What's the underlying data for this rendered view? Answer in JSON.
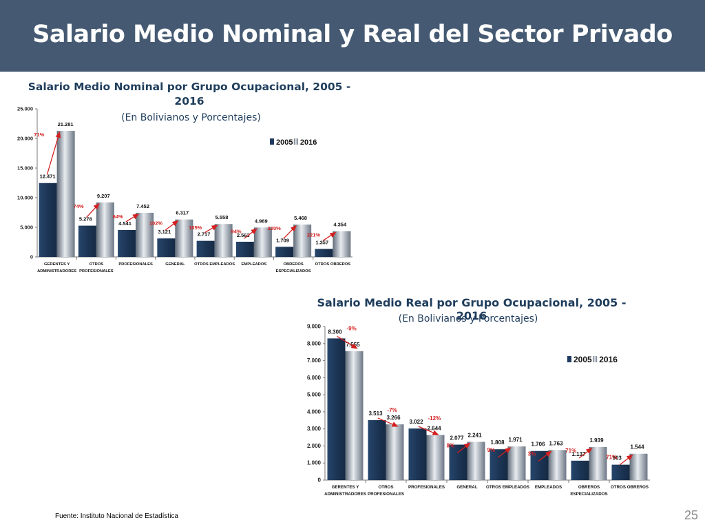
{
  "header": {
    "title": "Salario Medio Nominal y Real del Sector Privado"
  },
  "colors": {
    "series_2005": "#1f3a5f",
    "series_2016": "#8a9199",
    "arrow": "#d42020",
    "header_bg": "#455a72"
  },
  "footer": {
    "source": "Fuente: Instituto Nacional de Estadística",
    "page_number": "25"
  },
  "chart_data": [
    {
      "type": "bar",
      "title": "Salario Medio Nominal por Grupo Ocupacional, 2005 - 2016",
      "subtitle": "(En Bolivianos y Porcentajes)",
      "categories": [
        [
          "GERENTES Y",
          "ADMINISTRADORES"
        ],
        [
          "OTROS",
          "PROFESIONALES"
        ],
        [
          "PROFESIONALES"
        ],
        [
          "GENERAL"
        ],
        [
          "OTROS EMPLEADOS"
        ],
        [
          "EMPLEADOS"
        ],
        [
          "OBREROS",
          "ESPECIALIZADOS"
        ],
        [
          "OTROS OBREROS"
        ]
      ],
      "series": [
        {
          "name": "2005",
          "values": [
            12471,
            5278,
            4541,
            3121,
            2717,
            2563,
            1709,
            1357
          ],
          "labels": [
            "12.471",
            "5.278",
            "4.541",
            "3.121",
            "2.717",
            "2.563",
            "1.709",
            "1.357"
          ]
        },
        {
          "name": "2016",
          "values": [
            21281,
            9207,
            7452,
            6317,
            5558,
            4969,
            5468,
            4354
          ],
          "labels": [
            "21.281",
            "9.207",
            "7.452",
            "6.317",
            "5.558",
            "4.969",
            "5.468",
            "4.354"
          ]
        }
      ],
      "changes": [
        "71%",
        "74%",
        "64%",
        "102%",
        "105%",
        "94%",
        "220%",
        "221%"
      ],
      "ylim": [
        0,
        25000
      ],
      "ytick_values": [
        0,
        5000,
        10000,
        15000,
        20000,
        25000
      ],
      "yticks": [
        "0",
        "5.000",
        "10.000",
        "15.000",
        "20.000",
        "25.000"
      ],
      "legend": [
        "2005",
        "2016"
      ],
      "legend_position": "top-right",
      "grid": false
    },
    {
      "type": "bar",
      "title": "Salario Medio Real por Grupo Ocupacional, 2005 - 2016",
      "subtitle": "(En Bolivianos y Porcentajes)",
      "categories": [
        [
          "GERENTES Y",
          "ADMINISTRADORES"
        ],
        [
          "OTROS",
          "PROFESIONALES"
        ],
        [
          "PROFESIONALES"
        ],
        [
          "GENERAL"
        ],
        [
          "OTROS EMPLEADOS"
        ],
        [
          "EMPLEADOS"
        ],
        [
          "OBREROS",
          "ESPECIALIZADOS"
        ],
        [
          "OTROS OBREROS"
        ]
      ],
      "series": [
        {
          "name": "2005",
          "values": [
            8300,
            3513,
            3022,
            2077,
            1808,
            1706,
            1137,
            903
          ],
          "labels": [
            "8.300",
            "3.513",
            "3.022",
            "2.077",
            "1.808",
            "1.706",
            "1.137",
            "903"
          ]
        },
        {
          "name": "2016",
          "values": [
            7555,
            3266,
            2644,
            2241,
            1971,
            1763,
            1939,
            1544
          ],
          "labels": [
            "7.555",
            "3.266",
            "2.644",
            "2.241",
            "1.971",
            "1.763",
            "1.939",
            "1.544"
          ]
        }
      ],
      "changes": [
        "-9%",
        "-7%",
        "-12%",
        "8%",
        "9%",
        "3%",
        "71%",
        "71%"
      ],
      "ylim": [
        0,
        9000
      ],
      "ytick_values": [
        0,
        1000,
        2000,
        3000,
        4000,
        5000,
        6000,
        7000,
        8000,
        9000
      ],
      "yticks": [
        "0",
        "1.000",
        "2.000",
        "3.000",
        "4.000",
        "5.000",
        "6.000",
        "7.000",
        "8.000",
        "9.000"
      ],
      "legend": [
        "2005",
        "2016"
      ],
      "legend_position": "top-right",
      "grid": false
    }
  ]
}
